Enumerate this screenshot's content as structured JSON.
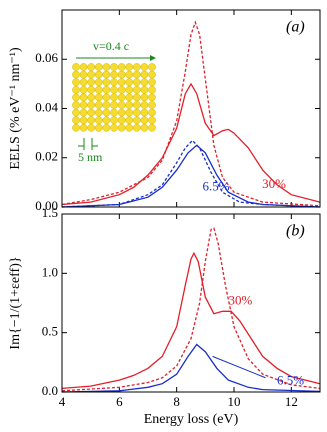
{
  "chart_data": [
    {
      "type": "line",
      "panel_label": "(a)",
      "ylabel": "EELS (% eV⁻¹ nm⁻¹)",
      "annotations": [
        "v=0.4 c",
        "5 nm"
      ],
      "xlim": [
        4,
        13
      ],
      "xticks": [
        4,
        6,
        8,
        10,
        12
      ],
      "ylim": [
        0,
        0.08
      ],
      "yticks": [
        {
          "value": 0,
          "label": "0.00"
        },
        {
          "value": 0.02,
          "label": "0.02"
        },
        {
          "value": 0.04,
          "label": "0.04"
        },
        {
          "value": 0.06,
          "label": "0.06"
        }
      ],
      "series": [
        {
          "name": "30%",
          "color": "#e0202a",
          "style": "solid",
          "x": [
            4,
            5,
            6,
            6.5,
            7,
            7.5,
            8,
            8.3,
            8.5,
            8.7,
            9,
            9.3,
            9.6,
            9.8,
            10,
            10.5,
            11,
            11.5,
            12,
            13
          ],
          "values": [
            0.001,
            0.002,
            0.005,
            0.008,
            0.013,
            0.02,
            0.032,
            0.046,
            0.05,
            0.046,
            0.034,
            0.029,
            0.031,
            0.0315,
            0.03,
            0.024,
            0.015,
            0.009,
            0.005,
            0.002
          ]
        },
        {
          "color": "#e0202a",
          "style": "dashed",
          "x": [
            4,
            5,
            6,
            7,
            7.5,
            8,
            8.3,
            8.5,
            8.65,
            8.8,
            9,
            9.3,
            9.6,
            10,
            11,
            13
          ],
          "values": [
            0.001,
            0.003,
            0.006,
            0.012,
            0.019,
            0.035,
            0.055,
            0.07,
            0.075,
            0.07,
            0.052,
            0.025,
            0.012,
            0.006,
            0.002,
            0.0005
          ]
        },
        {
          "name": "6.5%",
          "color": "#1a2fc8",
          "style": "solid",
          "x": [
            4,
            6,
            7,
            7.5,
            8,
            8.4,
            8.7,
            9,
            9.4,
            9.8,
            10.5,
            11,
            13
          ],
          "values": [
            0,
            0.001,
            0.004,
            0.008,
            0.015,
            0.022,
            0.025,
            0.022,
            0.013,
            0.006,
            0.002,
            0.001,
            0
          ]
        },
        {
          "color": "#1a2fc8",
          "style": "dashed",
          "x": [
            4,
            6,
            7,
            7.5,
            8,
            8.3,
            8.55,
            8.8,
            9.2,
            9.6,
            10.2,
            11,
            13
          ],
          "values": [
            0,
            0.001,
            0.005,
            0.009,
            0.018,
            0.024,
            0.027,
            0.024,
            0.014,
            0.006,
            0.002,
            0.001,
            0
          ]
        }
      ]
    },
    {
      "type": "line",
      "panel_label": "(b)",
      "ylabel": "Im{−1/(1+εeff)}",
      "xlabel": "Energy loss (eV)",
      "xlim": [
        4,
        13
      ],
      "xticks": [
        4,
        6,
        8,
        10,
        12
      ],
      "ylim": [
        0,
        1.5
      ],
      "yticks": [
        {
          "value": 0,
          "label": "0.0"
        },
        0.5,
        {
          "value": 1,
          "label": "1.0"
        },
        1.5
      ],
      "series": [
        {
          "name": "30%",
          "color": "#e0202a",
          "style": "solid",
          "x": [
            4,
            5,
            6,
            6.5,
            7,
            7.5,
            8,
            8.3,
            8.5,
            8.6,
            8.75,
            9,
            9.3,
            9.6,
            9.9,
            10.2,
            10.6,
            11,
            11.5,
            12,
            13
          ],
          "values": [
            0.03,
            0.05,
            0.1,
            0.14,
            0.2,
            0.3,
            0.55,
            0.9,
            1.12,
            1.17,
            1.1,
            0.8,
            0.66,
            0.68,
            0.68,
            0.6,
            0.45,
            0.3,
            0.2,
            0.13,
            0.07
          ]
        },
        {
          "color": "#e0202a",
          "style": "dashed",
          "x": [
            4,
            6,
            7,
            7.5,
            8,
            8.5,
            8.8,
            9,
            9.2,
            9.3,
            9.45,
            9.7,
            10,
            10.5,
            11,
            12,
            13
          ],
          "values": [
            0.01,
            0.04,
            0.08,
            0.12,
            0.22,
            0.45,
            0.75,
            1.1,
            1.37,
            1.38,
            1.25,
            0.9,
            0.55,
            0.28,
            0.15,
            0.06,
            0.03
          ]
        },
        {
          "name": "6.5%",
          "color": "#1a2fc8",
          "style": "solid",
          "x": [
            4,
            6,
            7,
            7.5,
            8,
            8.4,
            8.7,
            9,
            9.4,
            9.8,
            10.5,
            11,
            13
          ],
          "values": [
            0,
            0.01,
            0.04,
            0.07,
            0.15,
            0.3,
            0.4,
            0.34,
            0.2,
            0.1,
            0.04,
            0.02,
            0.005
          ]
        }
      ]
    }
  ]
}
